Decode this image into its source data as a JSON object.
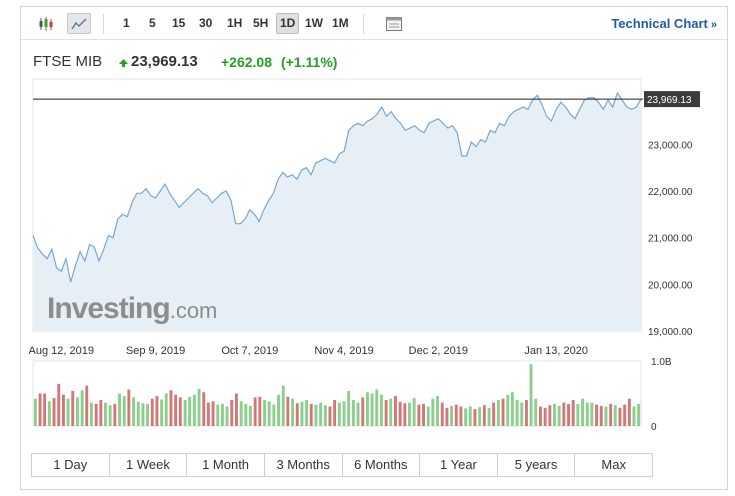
{
  "toolbar": {
    "timeframes": [
      "1",
      "5",
      "15",
      "30",
      "1H",
      "5H",
      "1D",
      "1W",
      "1M"
    ],
    "active_timeframe": "1D",
    "technical_chart_label": "Technical Chart",
    "technical_chart_arrow": "»"
  },
  "quote": {
    "name": "FTSE MIB",
    "price": "23,969.13",
    "change": "+262.08",
    "change_pct": "(+1.11%)",
    "direction": "up"
  },
  "watermark": {
    "brand": "Investing",
    "suffix": ".com"
  },
  "range_buttons": [
    "1 Day",
    "1 Week",
    "1 Month",
    "3 Months",
    "6 Months",
    "1 Year",
    "5 years",
    "Max"
  ],
  "colors": {
    "line": "#7aa7cc",
    "area": "#e6eef6",
    "up_volume": "#8ccf8c",
    "down_volume": "#d27777",
    "positive_text": "#21a121",
    "price_tag_bg": "#3c3c3c",
    "link": "#1f5ca6"
  },
  "chart_data": {
    "type": "area",
    "title": "",
    "xlabel": "",
    "ylabel": "",
    "ylim": [
      19000,
      24400
    ],
    "y_ticks": [
      "19,000.00",
      "20,000.00",
      "21,000.00",
      "22,000.00",
      "23,000.00"
    ],
    "y_tick_values": [
      19000,
      20000,
      21000,
      22000,
      23000
    ],
    "x_tick_labels": [
      "Aug 12, 2019",
      "Sep 9, 2019",
      "Oct 7, 2019",
      "Nov 4, 2019",
      "Dec 2, 2019",
      "Jan 13, 2020"
    ],
    "x_tick_index": [
      6,
      26,
      46,
      66,
      86,
      111
    ],
    "last_price_label": "23,969.13",
    "last_price": 23969.13,
    "series": [
      {
        "values": [
          21050,
          20780,
          20650,
          20550,
          20750,
          20350,
          20280,
          20550,
          20050,
          20400,
          20700,
          20500,
          20850,
          20800,
          20500,
          20750,
          21050,
          21000,
          21400,
          21500,
          21450,
          21750,
          21950,
          21950,
          22050,
          21900,
          21850,
          22000,
          22150,
          21950,
          21800,
          21650,
          21750,
          21850,
          21950,
          22050,
          21950,
          21900,
          21750,
          21850,
          21950,
          22000,
          21800,
          21300,
          21300,
          21400,
          21600,
          21500,
          21350,
          21600,
          21800,
          21950,
          22250,
          22400,
          22300,
          22350,
          22250,
          22450,
          22500,
          22350,
          22600,
          22650,
          22700,
          22650,
          22600,
          22800,
          22850,
          23300,
          23400,
          23450,
          23400,
          23500,
          23550,
          23650,
          23800,
          23600,
          23700,
          23550,
          23450,
          23300,
          23350,
          23400,
          23300,
          23250,
          23450,
          23500,
          23550,
          23450,
          23350,
          23400,
          23250,
          22750,
          22750,
          23050,
          22950,
          23100,
          23050,
          23300,
          23250,
          23450,
          23400,
          23600,
          23700,
          23750,
          23800,
          23750,
          23950,
          24050,
          23850,
          23600,
          23500,
          23750,
          23900,
          23800,
          23650,
          23550,
          23750,
          23950,
          24000,
          24000,
          23900,
          23750,
          23950,
          23800,
          24100,
          23950,
          23800,
          23750,
          23800,
          23969
        ]
      }
    ],
    "volume": {
      "axis_labels": [
        "1.0B",
        "0"
      ],
      "max": 1.0,
      "values": [
        0.42,
        0.5,
        0.5,
        0.38,
        0.43,
        0.65,
        0.48,
        0.42,
        0.54,
        0.44,
        0.55,
        0.62,
        0.36,
        0.34,
        0.4,
        0.36,
        0.32,
        0.34,
        0.5,
        0.46,
        0.56,
        0.44,
        0.37,
        0.35,
        0.34,
        0.42,
        0.46,
        0.41,
        0.5,
        0.55,
        0.48,
        0.44,
        0.4,
        0.45,
        0.48,
        0.57,
        0.52,
        0.36,
        0.38,
        0.33,
        0.34,
        0.3,
        0.4,
        0.5,
        0.38,
        0.34,
        0.31,
        0.44,
        0.45,
        0.4,
        0.38,
        0.33,
        0.48,
        0.62,
        0.45,
        0.42,
        0.35,
        0.37,
        0.4,
        0.34,
        0.33,
        0.36,
        0.32,
        0.3,
        0.4,
        0.36,
        0.38,
        0.54,
        0.4,
        0.36,
        0.44,
        0.52,
        0.5,
        0.56,
        0.48,
        0.4,
        0.42,
        0.46,
        0.37,
        0.35,
        0.36,
        0.43,
        0.33,
        0.34,
        0.3,
        0.42,
        0.46,
        0.36,
        0.28,
        0.31,
        0.33,
        0.3,
        0.27,
        0.3,
        0.26,
        0.29,
        0.32,
        0.28,
        0.36,
        0.4,
        0.42,
        0.48,
        0.52,
        0.4,
        0.36,
        0.4,
        0.95,
        0.42,
        0.3,
        0.28,
        0.32,
        0.34,
        0.31,
        0.36,
        0.34,
        0.4,
        0.34,
        0.42,
        0.36,
        0.36,
        0.33,
        0.31,
        0.3,
        0.34,
        0.32,
        0.28,
        0.33,
        0.42,
        0.3,
        0.34
      ],
      "up": [
        1,
        0,
        0,
        1,
        0,
        0,
        0,
        1,
        0,
        1,
        1,
        0,
        1,
        0,
        0,
        1,
        1,
        0,
        1,
        1,
        0,
        1,
        1,
        1,
        1,
        0,
        0,
        1,
        1,
        0,
        0,
        0,
        1,
        1,
        1,
        1,
        0,
        0,
        0,
        1,
        1,
        1,
        0,
        0,
        1,
        1,
        1,
        0,
        0,
        1,
        1,
        1,
        1,
        1,
        0,
        1,
        0,
        1,
        1,
        0,
        1,
        1,
        1,
        0,
        0,
        1,
        1,
        1,
        1,
        1,
        0,
        1,
        1,
        1,
        1,
        0,
        1,
        0,
        0,
        0,
        1,
        1,
        0,
        0,
        1,
        1,
        1,
        0,
        0,
        1,
        0,
        0,
        1,
        1,
        0,
        1,
        0,
        1,
        0,
        1,
        0,
        1,
        1,
        1,
        1,
        0,
        1,
        1,
        0,
        0,
        0,
        1,
        1,
        0,
        0,
        0,
        1,
        1,
        1,
        1,
        0,
        0,
        1,
        0,
        1,
        0,
        0,
        0,
        1,
        1
      ]
    }
  }
}
